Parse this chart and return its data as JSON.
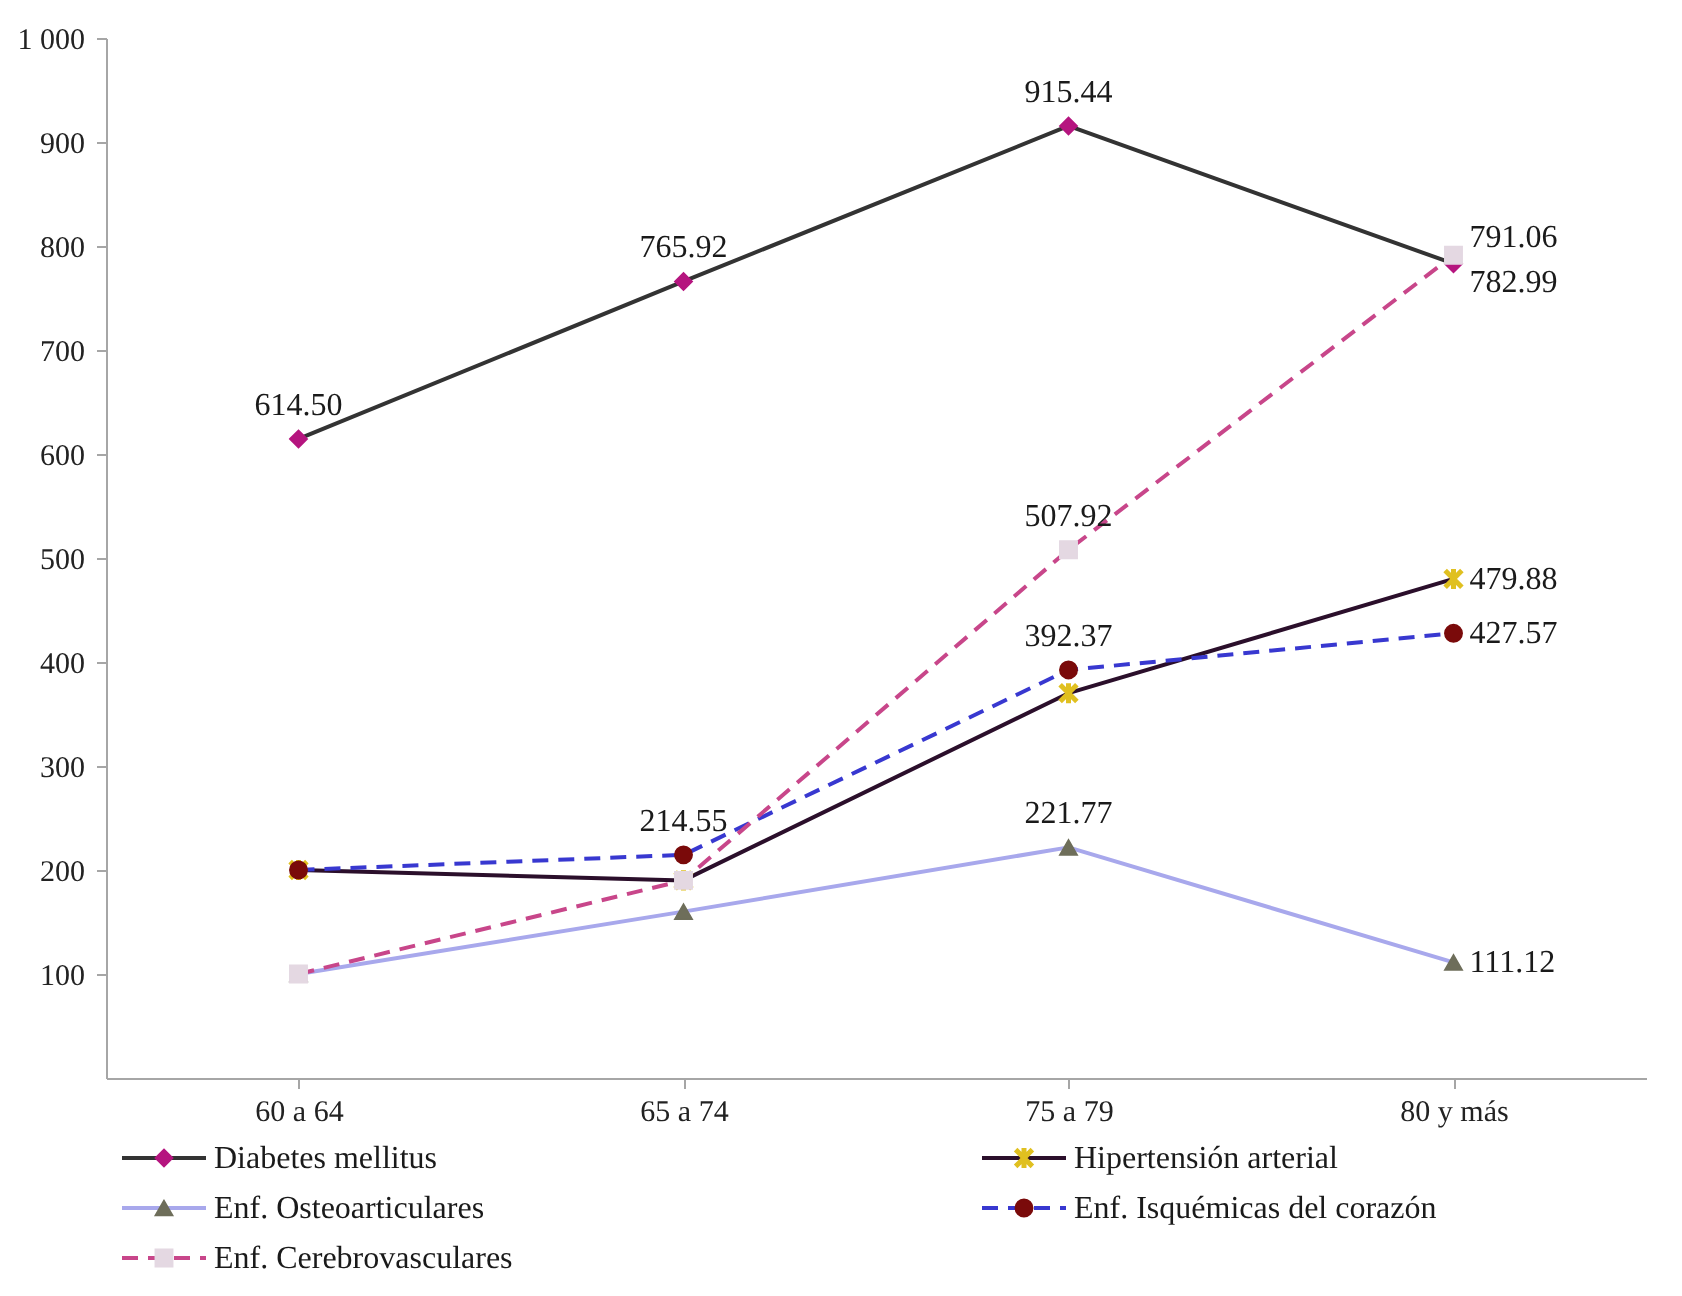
{
  "chart_data": {
    "type": "line",
    "categories": [
      "60 a 64",
      "65 a 74",
      "75 a 79",
      "80 y más"
    ],
    "series": [
      {
        "name": "Diabetes mellitus",
        "color": "#333333",
        "colors": [
          "#b5157f",
          "#b5157f",
          "#b5157f",
          "#b5157f"
        ],
        "marker": "diamond",
        "line_style": "solid",
        "values": [
          614.5,
          765.92,
          915.44,
          782.99
        ],
        "value_labels": [
          "614.50",
          "765.92",
          "915.44",
          "782.99"
        ]
      },
      {
        "name": "Hipertensión arterial",
        "color": "#2b0f2b",
        "colors": [
          "#e0c020",
          "#e0c020",
          "#e0c020",
          "#e0c020"
        ],
        "marker": "cross",
        "line_style": "solid",
        "values": [
          200,
          190,
          370,
          479.88
        ],
        "value_labels": [
          null,
          null,
          null,
          "479.88"
        ]
      },
      {
        "name": "Enf. Osteoarticulares",
        "color": "#a8a8ec",
        "colors": [
          "#6e6e5a",
          "#6e6e5a",
          "#6e6e5a",
          "#6e6e5a"
        ],
        "marker": "triangle",
        "line_style": "solid",
        "values": [
          100,
          160,
          221.77,
          111.12
        ],
        "value_labels": [
          null,
          null,
          "221.77",
          "111.12"
        ]
      },
      {
        "name": "Enf. Isquémicas del corazón",
        "color": "#3838d0",
        "colors": [
          "#7a0a0a",
          "#7a0a0a",
          "#7a0a0a",
          "#7a0a0a"
        ],
        "marker": "circle",
        "line_style": "dashed",
        "values": [
          200,
          214.55,
          392.37,
          427.57
        ],
        "value_labels": [
          null,
          "214.55",
          "392.37",
          "427.57"
        ]
      },
      {
        "name": "Enf. Cerebrovasculares",
        "color": "#c8468a",
        "colors": [
          "#e4d8e2",
          "#e4d8e2",
          "#e4d8e2",
          "#e4d8e2"
        ],
        "marker": "square",
        "line_style": "dashed",
        "values": [
          100,
          190,
          507.92,
          791.06
        ],
        "value_labels": [
          null,
          null,
          "507.92",
          "791.06"
        ]
      }
    ],
    "ylim": [
      0,
      1000
    ],
    "yticks": [
      100,
      200,
      300,
      400,
      500,
      600,
      700,
      800,
      900,
      {
        "value": 1000,
        "label": "1 000"
      }
    ],
    "grid": false,
    "legend": "bottom"
  }
}
